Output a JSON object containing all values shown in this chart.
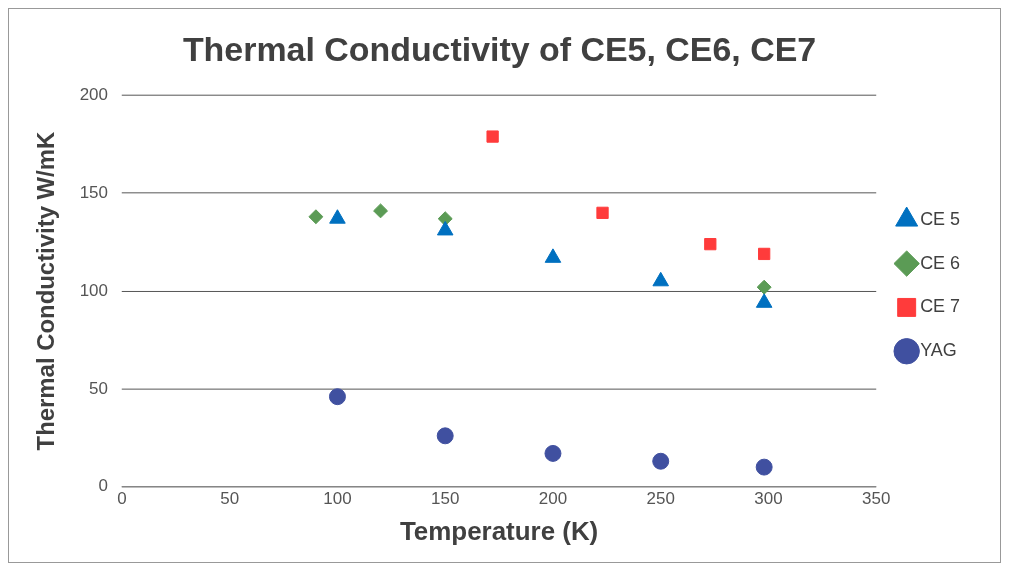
{
  "chart_data": {
    "type": "scatter",
    "title": "Thermal Conductivity of CE5, CE6, CE7",
    "xlabel": "Temperature (K)",
    "ylabel": "Thermal Conductivity W/mK",
    "xlim": [
      0,
      350
    ],
    "xticks": [
      0,
      50,
      100,
      150,
      200,
      250,
      300,
      350
    ],
    "ylim": [
      0,
      200
    ],
    "yticks": [
      0,
      50,
      100,
      150,
      200
    ],
    "grid": "y",
    "legend": "right",
    "series": [
      {
        "name": "CE 5",
        "color": "#0070c0",
        "marker": "triangle",
        "x": [
          100,
          150,
          200,
          250,
          298
        ],
        "values": [
          137,
          131,
          117,
          105,
          94
        ]
      },
      {
        "name": "CE 6",
        "color": "#5b9b55",
        "marker": "diamond",
        "x": [
          90,
          120,
          150,
          298
        ],
        "values": [
          138,
          141,
          137,
          102
        ]
      },
      {
        "name": "CE 7",
        "color": "#ff3b3b",
        "marker": "square",
        "x": [
          172,
          223,
          273,
          298
        ],
        "values": [
          179,
          140,
          124,
          119
        ]
      },
      {
        "name": "YAG",
        "color": "#4050a0",
        "marker": "circle",
        "x": [
          100,
          150,
          200,
          250,
          298
        ],
        "values": [
          46,
          26,
          17,
          13,
          10
        ]
      }
    ]
  }
}
